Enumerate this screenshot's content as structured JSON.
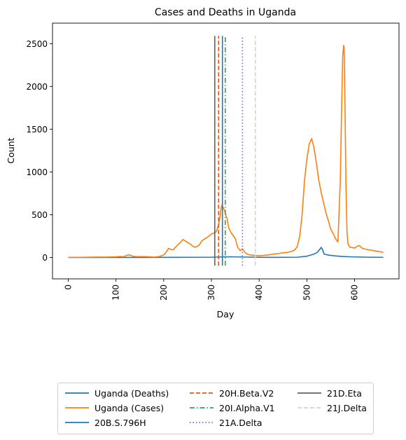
{
  "chart_data": {
    "type": "line",
    "title": "Cases and Deaths in Uganda",
    "xlabel": "Day",
    "ylabel": "Count",
    "xlim": [
      -33,
      693
    ],
    "ylim": [
      -250,
      2740
    ],
    "xticks": [
      0,
      100,
      200,
      300,
      400,
      500,
      600
    ],
    "yticks": [
      0,
      500,
      1000,
      1500,
      2000,
      2500
    ],
    "grid": false,
    "legend_position": "bottom-center, outside plot",
    "series": [
      {
        "name": "Uganda (Deaths)",
        "color": "#1f77b4",
        "x": [
          0,
          50,
          100,
          150,
          200,
          250,
          300,
          320,
          340,
          360,
          380,
          400,
          440,
          480,
          500,
          515,
          522,
          527,
          530,
          533,
          536,
          545,
          560,
          575,
          590,
          610,
          630,
          660
        ],
        "y": [
          0,
          0,
          0,
          0,
          1,
          2,
          3,
          6,
          8,
          6,
          4,
          2,
          1,
          3,
          15,
          40,
          60,
          95,
          118,
          90,
          40,
          28,
          18,
          12,
          8,
          5,
          3,
          2
        ]
      },
      {
        "name": "Uganda (Cases)",
        "color": "#ff7f0e",
        "x": [
          0,
          20,
          40,
          60,
          80,
          100,
          110,
          115,
          120,
          125,
          130,
          135,
          140,
          150,
          160,
          170,
          180,
          190,
          200,
          205,
          210,
          215,
          220,
          225,
          230,
          235,
          240,
          245,
          250,
          255,
          260,
          265,
          270,
          275,
          280,
          285,
          290,
          295,
          300,
          305,
          310,
          315,
          318,
          320,
          322,
          325,
          328,
          330,
          333,
          336,
          340,
          345,
          350,
          355,
          360,
          365,
          370,
          375,
          380,
          390,
          400,
          410,
          420,
          430,
          440,
          450,
          460,
          470,
          475,
          480,
          485,
          490,
          495,
          500,
          505,
          510,
          515,
          520,
          525,
          530,
          535,
          540,
          545,
          550,
          555,
          560,
          565,
          570,
          573,
          575,
          577,
          578,
          580,
          582,
          584,
          586,
          590,
          600,
          605,
          610,
          615,
          620,
          630,
          640,
          650,
          660
        ],
        "y": [
          2,
          2,
          3,
          5,
          5,
          8,
          12,
          8,
          18,
          30,
          28,
          15,
          12,
          10,
          10,
          8,
          5,
          10,
          30,
          60,
          105,
          95,
          90,
          120,
          150,
          175,
          210,
          195,
          175,
          160,
          135,
          120,
          130,
          150,
          195,
          215,
          230,
          250,
          275,
          285,
          300,
          380,
          480,
          570,
          610,
          580,
          540,
          500,
          450,
          350,
          300,
          260,
          220,
          120,
          80,
          100,
          60,
          40,
          30,
          25,
          20,
          25,
          30,
          40,
          45,
          55,
          60,
          75,
          90,
          130,
          250,
          500,
          900,
          1150,
          1330,
          1390,
          1280,
          1100,
          900,
          760,
          640,
          520,
          430,
          330,
          280,
          220,
          180,
          900,
          1800,
          2350,
          2480,
          2450,
          1700,
          800,
          300,
          160,
          120,
          110,
          130,
          140,
          110,
          100,
          90,
          80,
          70,
          60
        ]
      }
    ],
    "vlines": [
      {
        "name": "20B.S.796H",
        "x": 323,
        "color": "#1f77b4",
        "style": "solid"
      },
      {
        "name": "20H.Beta.V2",
        "x": 315,
        "color": "#e6550d",
        "style": "dashed"
      },
      {
        "name": "20I.Alpha.V1",
        "x": 329,
        "color": "#31a354",
        "style": "dashdot"
      },
      {
        "name": "21A.Delta",
        "x": 365,
        "color": "#756bb1",
        "style": "dotted"
      },
      {
        "name": "21D.Eta",
        "x": 307,
        "color": "#636363",
        "style": "solid"
      },
      {
        "name": "21J.Delta",
        "x": 392,
        "color": "#d3d3d3",
        "style": "dashed"
      }
    ],
    "legend": [
      {
        "label": "Uganda (Deaths)",
        "color": "#1f77b4",
        "style": "solid"
      },
      {
        "label": "Uganda (Cases)",
        "color": "#ff7f0e",
        "style": "solid"
      },
      {
        "label": "20B.S.796H",
        "color": "#1f77b4",
        "style": "solid"
      },
      {
        "label": "20H.Beta.V2",
        "color": "#e6550d",
        "style": "dashed"
      },
      {
        "label": "20I.Alpha.V1",
        "color": "#31a354",
        "style": "dashdot"
      },
      {
        "label": "21A.Delta",
        "color": "#756bb1",
        "style": "dotted"
      },
      {
        "label": "21D.Eta",
        "color": "#636363",
        "style": "solid"
      },
      {
        "label": "21J.Delta",
        "color": "#d3d3d3",
        "style": "dashed"
      }
    ]
  }
}
